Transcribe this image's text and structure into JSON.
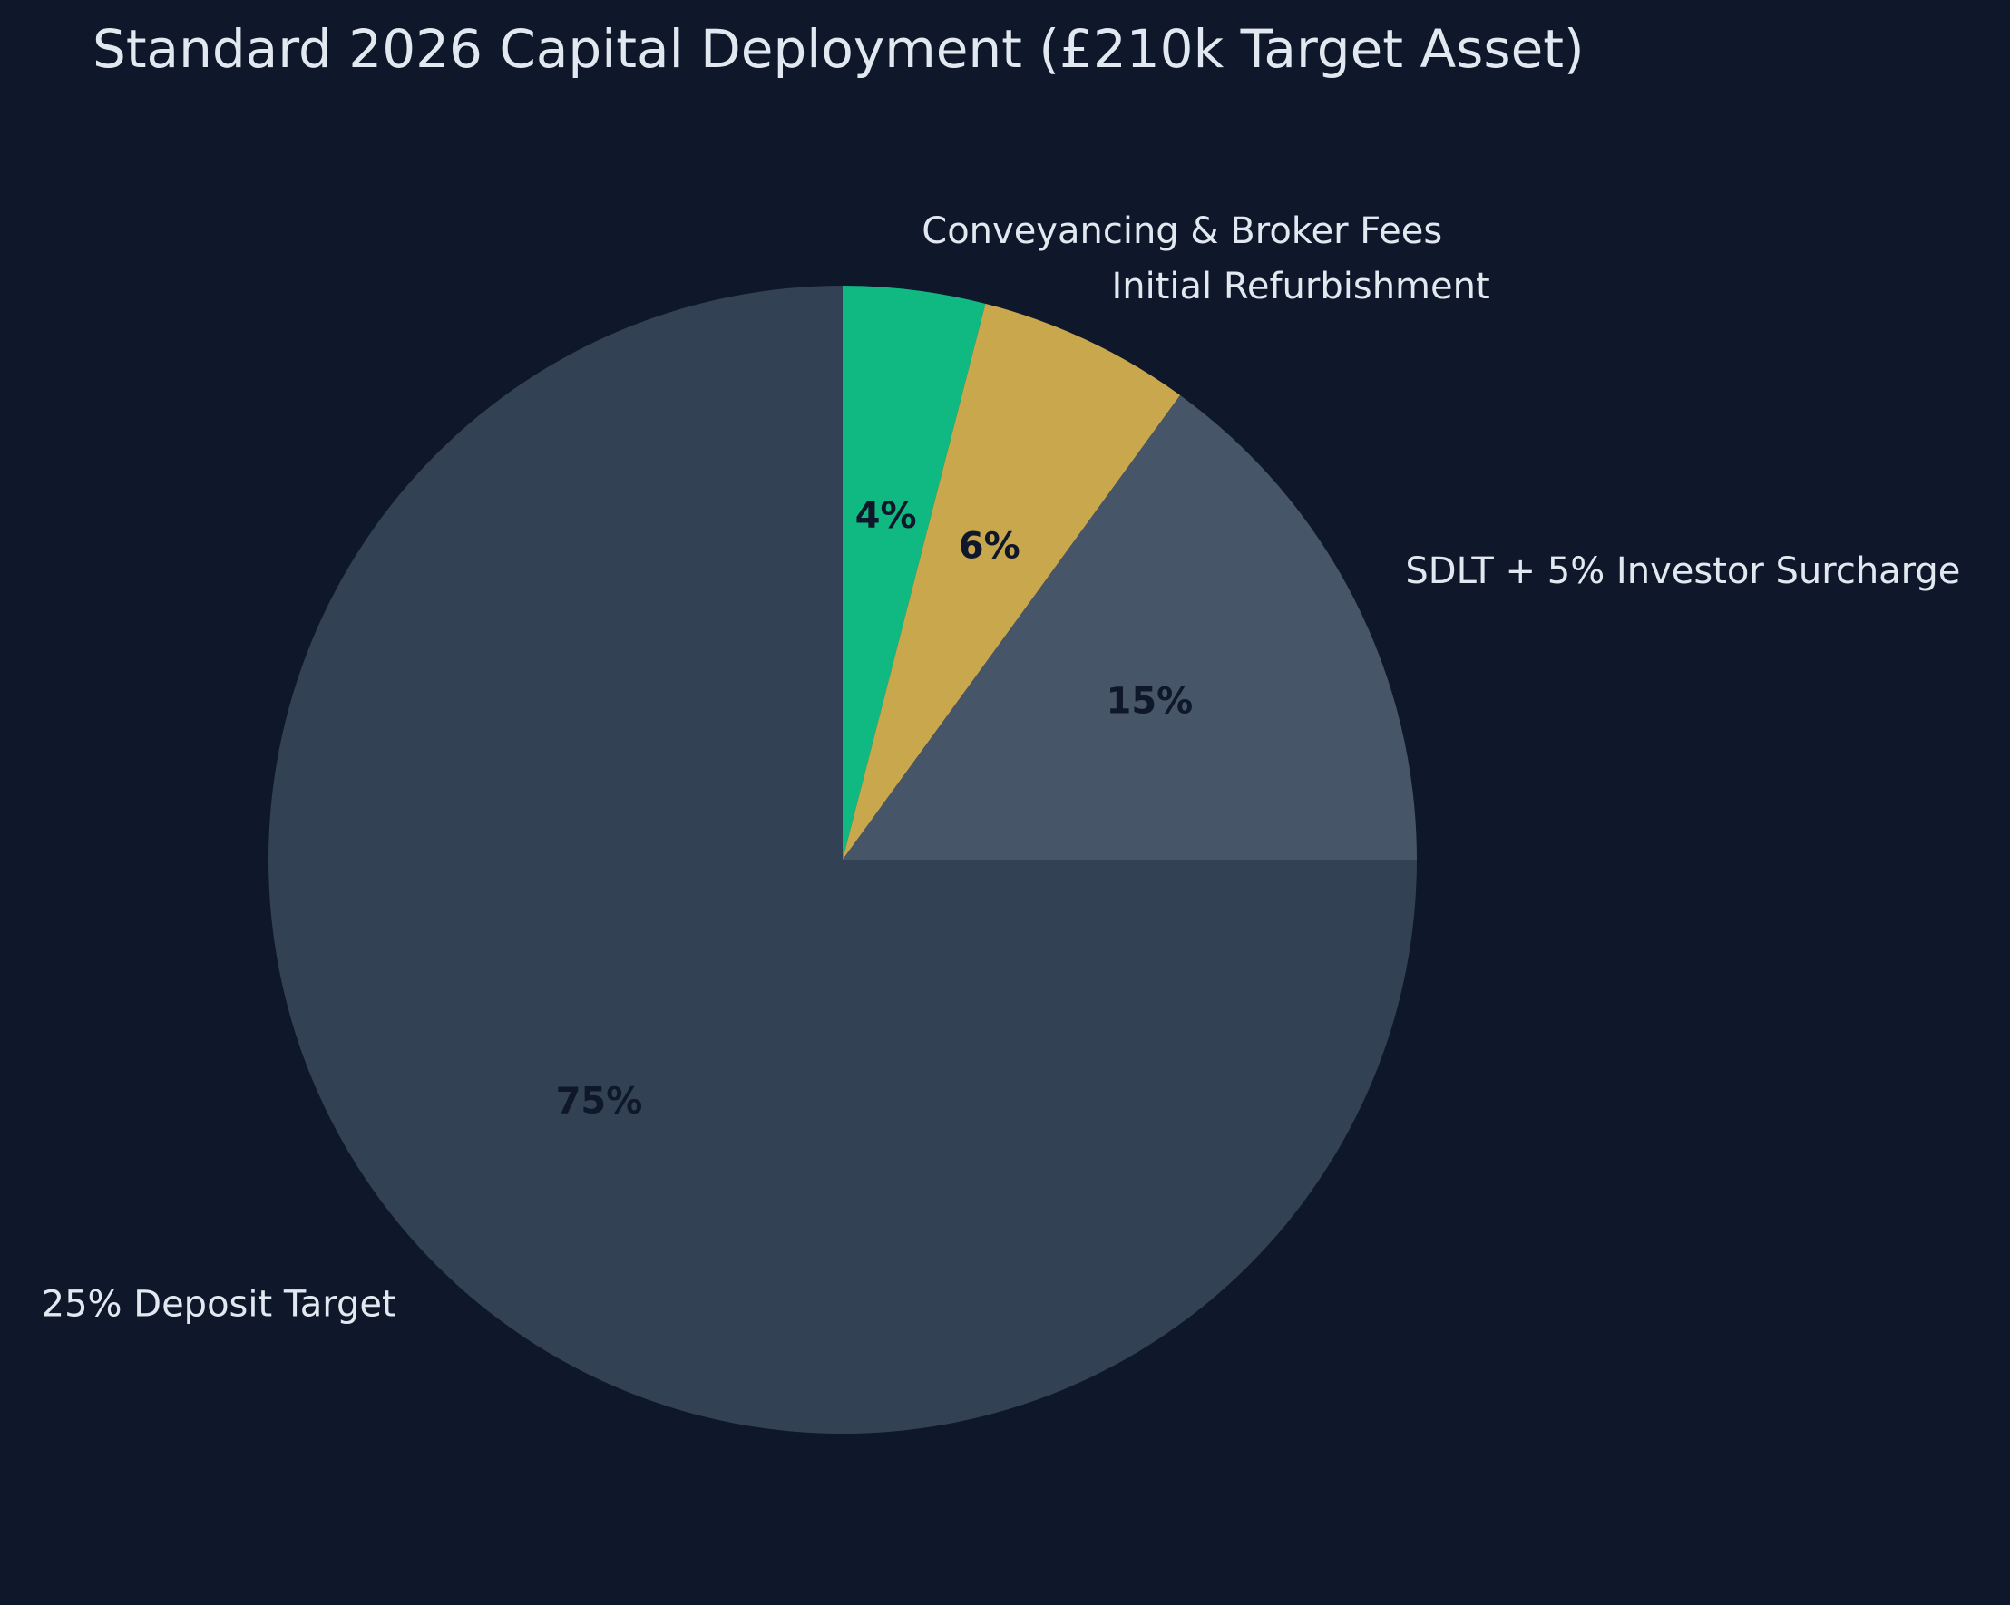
{
  "chart_data": {
    "type": "pie",
    "title": "Standard 2026 Capital Deployment (£210k Target Asset)",
    "start_angle_deg": 90,
    "direction": "clockwise",
    "slices": [
      {
        "label": "Conveyancing & Broker Fees",
        "value": 4,
        "pct_label": "4%",
        "color": "#10b981"
      },
      {
        "label": "Initial Refurbishment",
        "value": 6,
        "pct_label": "6%",
        "color": "#c9a74c"
      },
      {
        "label": "SDLT + 5% Investor Surcharge",
        "value": 15,
        "pct_label": "15%",
        "color": "#475569"
      },
      {
        "label": "25% Deposit Target",
        "value": 75,
        "pct_label": "75%",
        "color": "#334155"
      }
    ]
  },
  "colors": {
    "background": "#0f172a",
    "text": "#e2e8f0",
    "pct_text": "#0f172a"
  }
}
